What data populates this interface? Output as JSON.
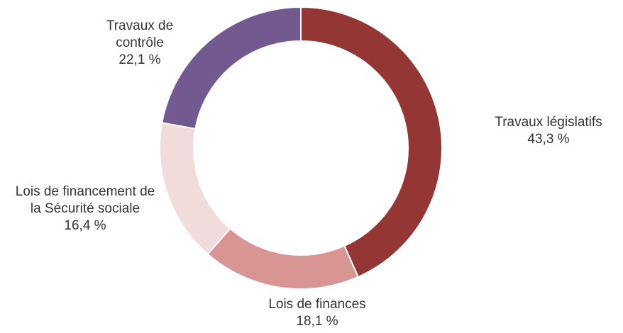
{
  "chart_data": {
    "type": "donut",
    "categories": [
      "Travaux législatifs",
      "Lois de finances",
      "Lois de financement de la Sécurité sociale",
      "Travaux de contrôle"
    ],
    "values": [
      43.3,
      18.1,
      16.4,
      22.1
    ],
    "value_labels": [
      "43,3 %",
      "18,1 %",
      "16,4 %",
      "22,1 %"
    ],
    "colors": [
      "#943634",
      "#d99594",
      "#f2dbdb",
      "#725a91"
    ]
  }
}
